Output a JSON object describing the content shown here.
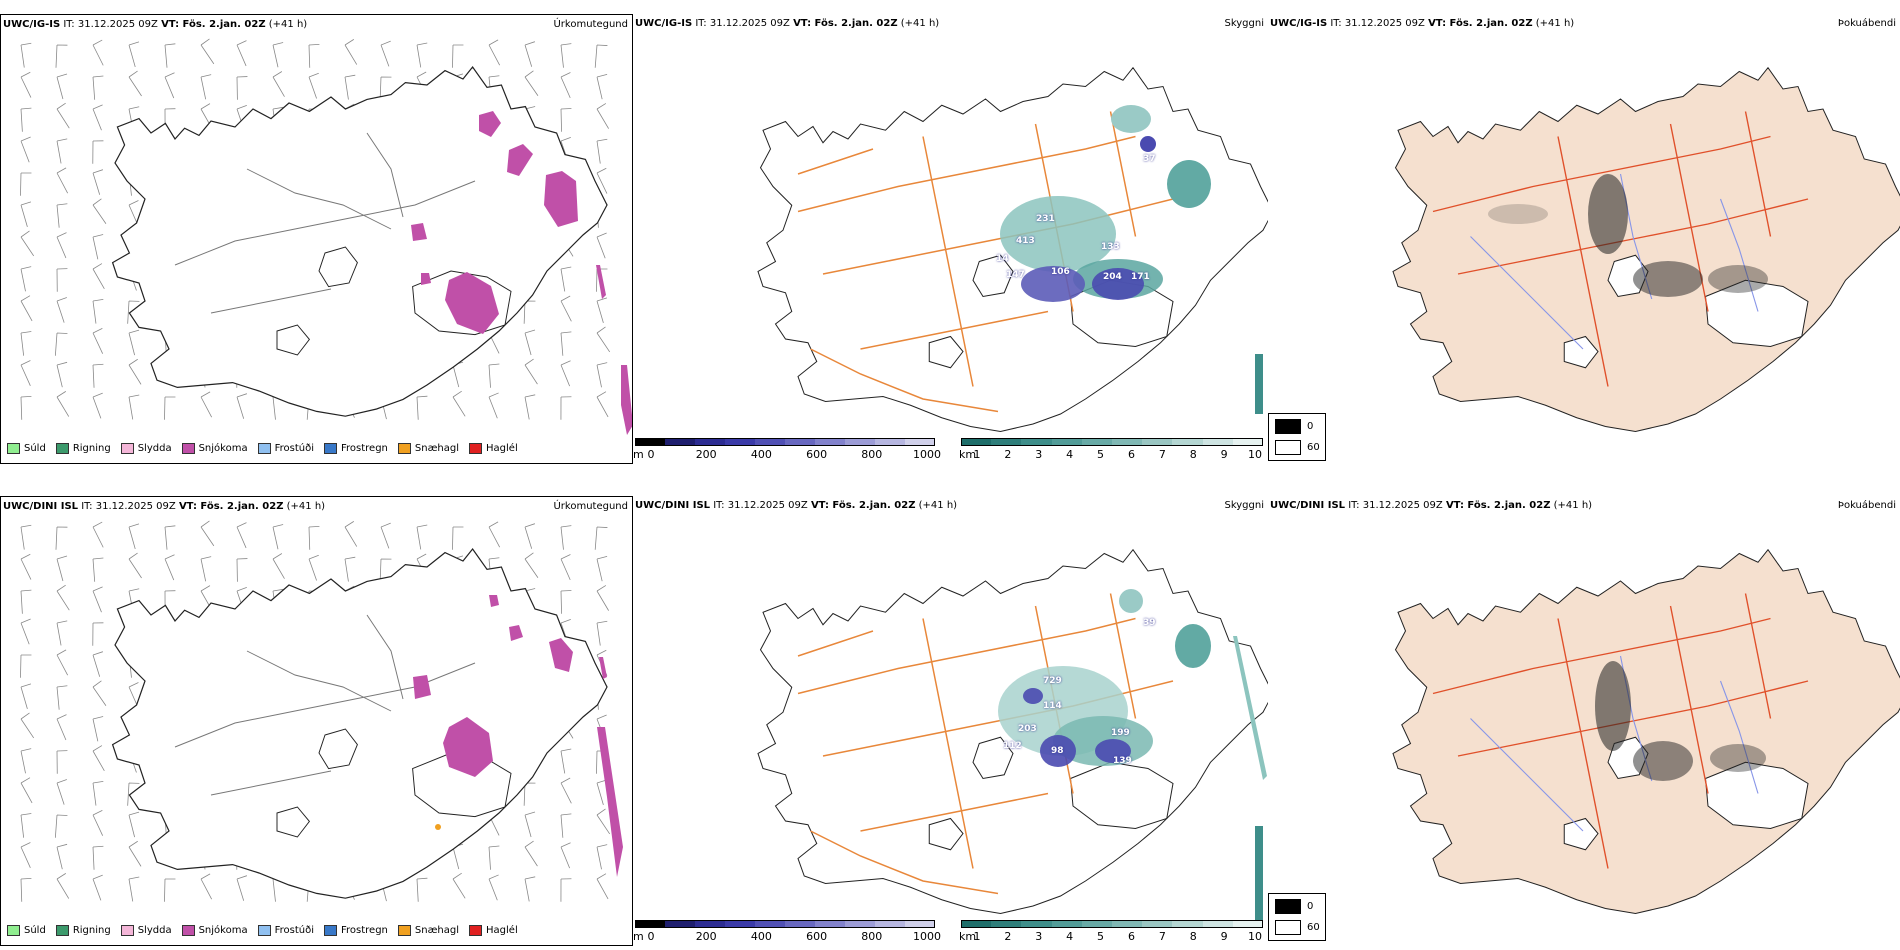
{
  "rows": [
    {
      "model": "UWC/IG-IS",
      "it_label": "IT: 31.12.2025 09Z",
      "vt_label": "VT: Fös. 2.jan. 02Z",
      "lead": "(+41 h)",
      "cloud_numbers": [
        "231",
        "413",
        "14",
        "147",
        "106",
        "133",
        "204",
        "171",
        "37"
      ]
    },
    {
      "model": "UWC/DINI ISL",
      "it_label": "IT: 31.12.2025 09Z",
      "vt_label": "VT: Fös. 2.jan. 02Z",
      "lead": "(+41 h)",
      "cloud_numbers": [
        "729",
        "114",
        "203",
        "112",
        "98",
        "199",
        "139",
        "39"
      ]
    }
  ],
  "panel_titles": {
    "precip_type": "Úrkomutegund",
    "visibility": "Skyggni",
    "cloud_cover": "Þokuábendi"
  },
  "precip_legend": [
    {
      "label": "Súld",
      "color": "#90ee90"
    },
    {
      "label": "Rigning",
      "color": "#3c9a6c"
    },
    {
      "label": "Slydda",
      "color": "#f4b6d8"
    },
    {
      "label": "Snjókoma",
      "color": "#c050a8"
    },
    {
      "label": "Frostúði",
      "color": "#90c0f0"
    },
    {
      "label": "Frostregn",
      "color": "#3878c8"
    },
    {
      "label": "Snæhagl",
      "color": "#f0a020"
    },
    {
      "label": "Haglél",
      "color": "#e02020"
    }
  ],
  "ceiling_bar": {
    "unit": "m",
    "ticks": [
      "0",
      "200",
      "400",
      "600",
      "800",
      "1000"
    ],
    "colors": [
      "#000000",
      "#1e1e6e",
      "#2c2c92",
      "#3a3aa8",
      "#5050b4",
      "#6868c0",
      "#8282cc",
      "#9c9cd6",
      "#b6b6e0",
      "#d0d0ea"
    ]
  },
  "visibility_bar": {
    "unit": "km",
    "ticks": [
      "1",
      "2",
      "3",
      "4",
      "5",
      "6",
      "7",
      "8",
      "9",
      "10"
    ],
    "colors": [
      "#1e6e6a",
      "#2e7e7a",
      "#3e8e8a",
      "#529c98",
      "#68aaa6",
      "#80b8b4",
      "#9ac6c2",
      "#b4d6d2",
      "#cee4e2",
      "#e6f2f0"
    ]
  },
  "cloud_legend": {
    "items": [
      {
        "label": "0",
        "color": "#000000"
      },
      {
        "label": "60",
        "color": "#ffffff"
      }
    ]
  }
}
